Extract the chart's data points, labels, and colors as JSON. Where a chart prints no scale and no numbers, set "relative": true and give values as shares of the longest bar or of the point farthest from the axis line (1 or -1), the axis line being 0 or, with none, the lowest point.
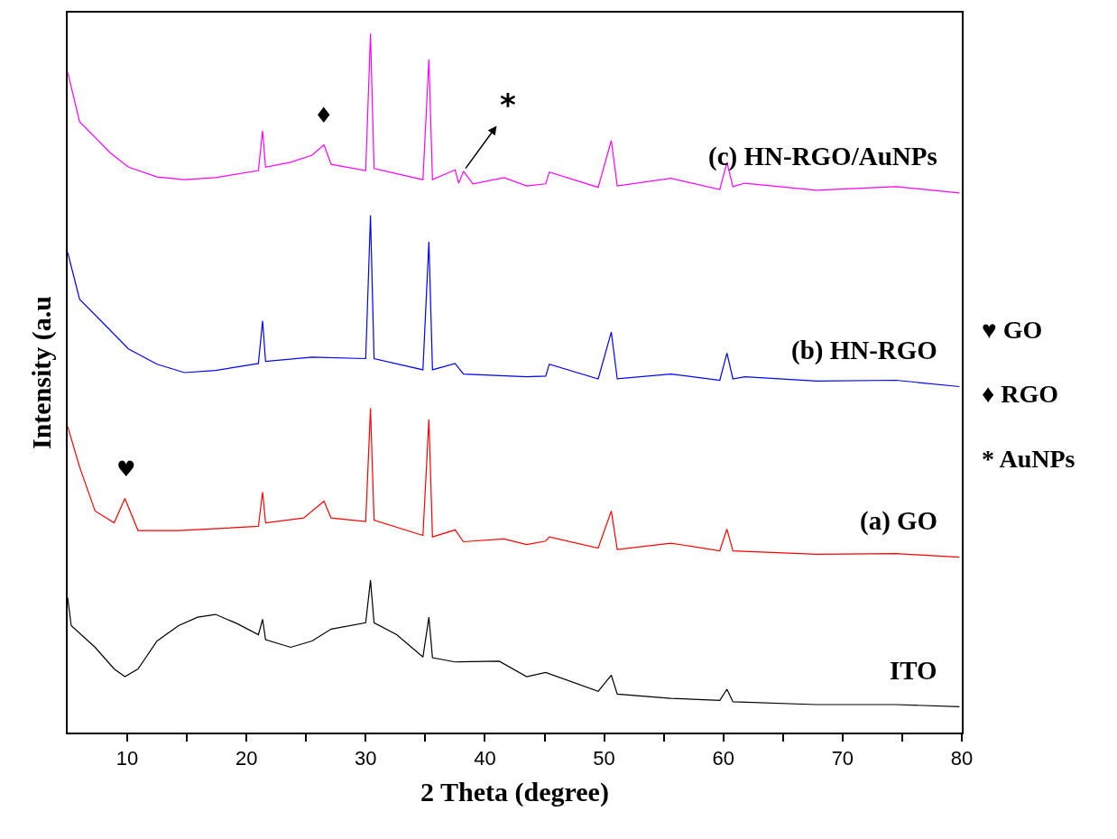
{
  "chart_data": {
    "type": "line",
    "relative": true,
    "xlabel": "2 Theta (degree)",
    "ylabel": "Intensity (a.u",
    "xlim": [
      5,
      80
    ],
    "xticks": [
      10,
      {
        "value": 15,
        "label": null
      },
      20,
      {
        "value": 25,
        "label": null
      },
      30,
      {
        "value": 35,
        "label": null
      },
      40,
      {
        "value": 45,
        "label": null
      },
      50,
      {
        "value": 55,
        "label": null
      },
      60,
      {
        "value": 65,
        "label": null
      },
      70,
      {
        "value": 75,
        "label": null
      },
      80
    ],
    "tick_labels": "x",
    "legend": false,
    "marker": "none",
    "line_style": "solid",
    "series": [
      {
        "name": "ITO",
        "color": "#000000",
        "x": [
          5,
          5.3,
          7.3,
          8.9,
          9.8,
          10.9,
          12.5,
          14.3,
          15.9,
          17.4,
          19.2,
          21.0,
          21.35,
          21.6,
          23.7,
          25.5,
          27.1,
          30.0,
          30.4,
          30.7,
          32.6,
          34.8,
          35.3,
          35.6,
          37.5,
          41.2,
          43.5,
          45.1,
          49.5,
          50.6,
          51.1,
          55.6,
          59.7,
          60.3,
          60.8,
          67.8,
          74.5,
          79.8
        ],
        "values": [
          0.193,
          0.153,
          0.122,
          0.091,
          0.08,
          0.091,
          0.131,
          0.153,
          0.165,
          0.169,
          0.156,
          0.14,
          0.162,
          0.133,
          0.122,
          0.131,
          0.148,
          0.157,
          0.218,
          0.157,
          0.14,
          0.108,
          0.165,
          0.107,
          0.101,
          0.102,
          0.08,
          0.086,
          0.059,
          0.082,
          0.055,
          0.049,
          0.046,
          0.062,
          0.044,
          0.04,
          0.04,
          0.037
        ]
      },
      {
        "name": "(a) GO",
        "color": "#ff0000",
        "x": [
          5,
          6,
          7.3,
          8.9,
          9.8,
          10.9,
          14.3,
          21.0,
          21.35,
          21.6,
          24.8,
          26.5,
          27.1,
          30.0,
          30.4,
          30.7,
          34.8,
          35.3,
          35.6,
          37.5,
          38.2,
          41.6,
          43.5,
          45.1,
          45.4,
          49.5,
          50.6,
          51.1,
          55.6,
          59.7,
          60.3,
          60.8,
          67.8,
          74.5,
          79.8
        ],
        "values": [
          0.438,
          0.38,
          0.317,
          0.3,
          0.335,
          0.289,
          0.289,
          0.295,
          0.344,
          0.3,
          0.307,
          0.331,
          0.307,
          0.302,
          0.464,
          0.304,
          0.282,
          0.448,
          0.28,
          0.29,
          0.273,
          0.277,
          0.269,
          0.274,
          0.28,
          0.264,
          0.317,
          0.262,
          0.271,
          0.26,
          0.291,
          0.26,
          0.255,
          0.256,
          0.251
        ]
      },
      {
        "name": "(b) HN-RGO",
        "color": "#0000ff",
        "x": [
          5,
          6,
          8.6,
          10.1,
          12.5,
          14.8,
          17.4,
          21.0,
          21.35,
          21.6,
          25.5,
          30.0,
          30.4,
          30.7,
          34.8,
          35.3,
          35.6,
          37.5,
          38.2,
          43.5,
          45.1,
          45.4,
          49.5,
          50.6,
          51.1,
          55.6,
          59.7,
          60.3,
          60.8,
          61.8,
          67.8,
          74.5,
          79.8
        ],
        "values": [
          0.687,
          0.62,
          0.575,
          0.549,
          0.527,
          0.515,
          0.518,
          0.528,
          0.589,
          0.531,
          0.537,
          0.535,
          0.74,
          0.535,
          0.519,
          0.702,
          0.519,
          0.528,
          0.513,
          0.509,
          0.51,
          0.527,
          0.506,
          0.573,
          0.506,
          0.513,
          0.504,
          0.543,
          0.506,
          0.509,
          0.503,
          0.504,
          0.495
        ]
      },
      {
        "name": "(c) HN-RGO/AuNPs",
        "color": "#ff00ff",
        "x": [
          5,
          6,
          8.6,
          10.1,
          12.5,
          14.8,
          17.4,
          21.0,
          21.35,
          21.6,
          23.7,
          25.5,
          26.5,
          27.1,
          30.0,
          30.4,
          30.7,
          34.8,
          35.3,
          35.6,
          37.5,
          37.8,
          38.2,
          39.0,
          41.6,
          43.5,
          45.1,
          45.4,
          49.5,
          50.6,
          51.1,
          55.6,
          59.7,
          60.3,
          60.8,
          61.8,
          67.8,
          74.5,
          79.8
        ],
        "values": [
          0.945,
          0.874,
          0.829,
          0.809,
          0.795,
          0.791,
          0.794,
          0.804,
          0.861,
          0.809,
          0.816,
          0.826,
          0.841,
          0.813,
          0.804,
          1.0,
          0.807,
          0.791,
          0.963,
          0.791,
          0.805,
          0.786,
          0.803,
          0.785,
          0.794,
          0.782,
          0.785,
          0.802,
          0.78,
          0.847,
          0.782,
          0.793,
          0.777,
          0.816,
          0.781,
          0.786,
          0.776,
          0.781,
          0.772
        ]
      }
    ],
    "annotations": [
      {
        "text": "♥",
        "x": 9.9,
        "y": 0.335
      },
      {
        "text": "♦",
        "x": 26.5,
        "y": 0.841
      },
      {
        "text": "*",
        "x": 38.2,
        "y": 0.803
      },
      "♥ GO",
      "♦ RGO",
      "* AuNPs"
    ]
  }
}
